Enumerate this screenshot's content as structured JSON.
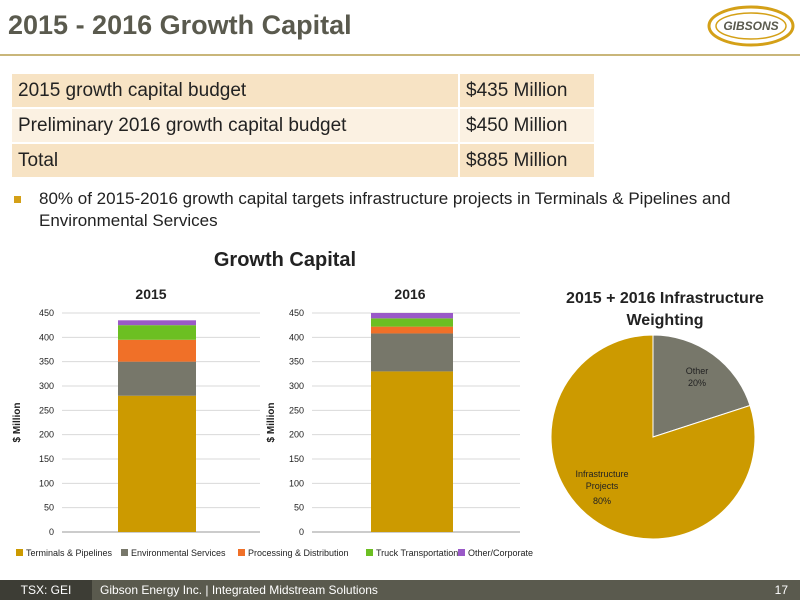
{
  "slide": {
    "title": "2015 - 2016 Growth Capital",
    "logo_text": "GIBSONS"
  },
  "budget_table": {
    "rows": [
      {
        "label": "2015 growth capital budget",
        "value": "$435 Million"
      },
      {
        "label": "Preliminary 2016 growth capital budget",
        "value": "$450 Million"
      },
      {
        "label": "Total",
        "value": "$885 Million"
      }
    ]
  },
  "bullet": "80% of 2015-2016 growth capital targets infrastructure projects in Terminals & Pipelines and Environmental Services",
  "chart_data": [
    {
      "type": "bar",
      "stacked": true,
      "title": "Growth Capital",
      "subtitle": "2015",
      "categories": [
        "2015"
      ],
      "ylabel": "$ Million",
      "ylim": [
        0,
        450
      ],
      "yticks": [
        0,
        50,
        100,
        150,
        200,
        250,
        300,
        350,
        400,
        450
      ],
      "grid": true,
      "series": [
        {
          "name": "Terminals & Pipelines",
          "values": [
            280
          ],
          "color": "#cc9a00"
        },
        {
          "name": "Environmental Services",
          "values": [
            70
          ],
          "color": "#77776a"
        },
        {
          "name": "Processing & Distribution",
          "values": [
            45
          ],
          "color": "#f07028"
        },
        {
          "name": "Truck Transportation",
          "values": [
            30
          ],
          "color": "#6cbf22"
        },
        {
          "name": "Other/Corporate",
          "values": [
            10
          ],
          "color": "#9a59c8"
        }
      ]
    },
    {
      "type": "bar",
      "stacked": true,
      "subtitle": "2016",
      "categories": [
        "2016"
      ],
      "ylabel": "$ Million",
      "ylim": [
        0,
        450
      ],
      "yticks": [
        0,
        50,
        100,
        150,
        200,
        250,
        300,
        350,
        400,
        450
      ],
      "grid": true,
      "series": [
        {
          "name": "Terminals & Pipelines",
          "values": [
            330
          ],
          "color": "#cc9a00"
        },
        {
          "name": "Environmental Services",
          "values": [
            78
          ],
          "color": "#77776a"
        },
        {
          "name": "Processing & Distribution",
          "values": [
            14
          ],
          "color": "#f07028"
        },
        {
          "name": "Truck Transportation",
          "values": [
            17
          ],
          "color": "#6cbf22"
        },
        {
          "name": "Other/Corporate",
          "values": [
            11
          ],
          "color": "#9a59c8"
        }
      ]
    },
    {
      "type": "pie",
      "title": "2015 + 2016 Infrastructure Weighting",
      "slices": [
        {
          "label": "Infrastructure Projects",
          "value": 80,
          "display": "80%",
          "color": "#cc9a00"
        },
        {
          "label": "Other",
          "value": 20,
          "display": "20%",
          "color": "#77776a"
        }
      ]
    }
  ],
  "legend": {
    "items": [
      {
        "label": "Terminals & Pipelines",
        "color": "#cc9a00"
      },
      {
        "label": "Environmental Services",
        "color": "#77776a"
      },
      {
        "label": "Processing & Distribution",
        "color": "#f07028"
      },
      {
        "label": "Truck Transportation",
        "color": "#6cbf22"
      },
      {
        "label": "Other/Corporate",
        "color": "#9a59c8"
      }
    ]
  },
  "footer": {
    "ticker": "TSX: GEI",
    "company": "Gibson Energy Inc.  |  Integrated Midstream Solutions",
    "page": "17"
  }
}
